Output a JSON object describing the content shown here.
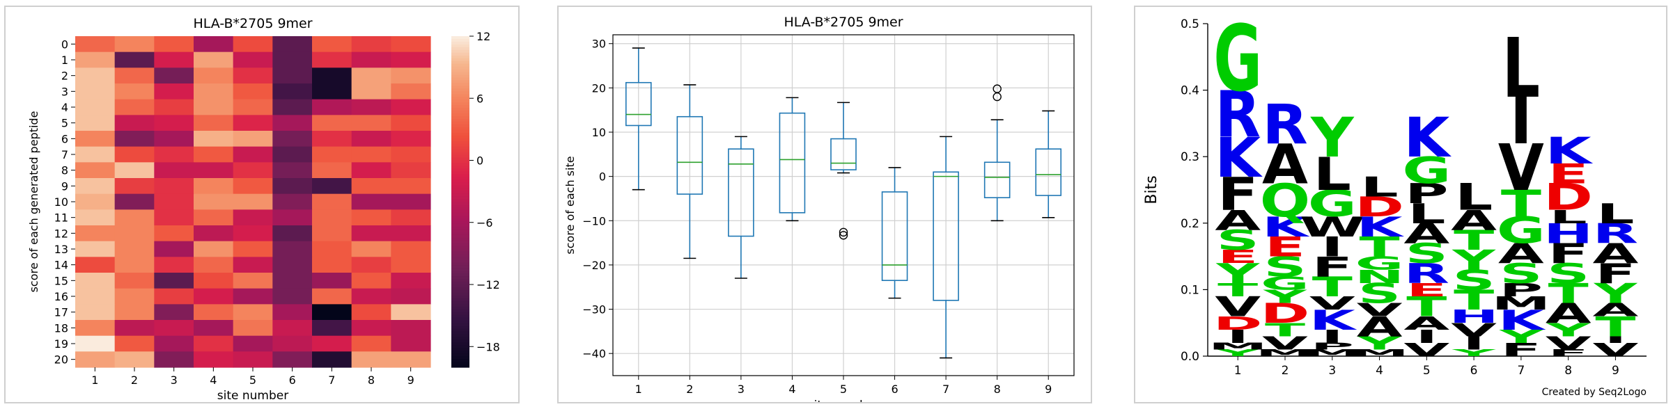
{
  "chart_data": [
    {
      "type": "heatmap",
      "title": "HLA-B*2705 9mer",
      "xlabel": "site number",
      "ylabel": "score of each generated peptide",
      "x_categories": [
        "1",
        "2",
        "3",
        "4",
        "5",
        "6",
        "7",
        "8",
        "9"
      ],
      "y_categories": [
        "0",
        "1",
        "2",
        "3",
        "4",
        "5",
        "6",
        "7",
        "8",
        "9",
        "10",
        "11",
        "12",
        "13",
        "14",
        "15",
        "16",
        "17",
        "18",
        "19",
        "20"
      ],
      "values": [
        [
          4,
          6,
          3,
          -6,
          2,
          -12,
          3,
          1,
          2
        ],
        [
          8,
          -12,
          -2,
          8,
          -3,
          -12,
          0,
          -3,
          -2
        ],
        [
          10,
          4,
          -10,
          6,
          0,
          -12,
          -18,
          8,
          7
        ],
        [
          10,
          6,
          -2,
          7,
          3,
          -14,
          -18,
          8,
          5
        ],
        [
          10,
          4,
          1,
          7,
          4,
          -12,
          -5,
          -4,
          -2
        ],
        [
          10,
          -3,
          -2,
          4,
          -1,
          -6,
          4,
          4,
          2
        ],
        [
          6,
          -9,
          -6,
          9,
          8,
          -10,
          0,
          -3,
          -1
        ],
        [
          10,
          2,
          0,
          3,
          -3,
          -12,
          3,
          3,
          2
        ],
        [
          6,
          10,
          -3,
          -3,
          0,
          -10,
          4,
          -2,
          1
        ],
        [
          10,
          1,
          0,
          6,
          3,
          -12,
          -14,
          3,
          3
        ],
        [
          9,
          -9,
          0,
          7,
          7,
          -9,
          4,
          -6,
          -6
        ],
        [
          10,
          6,
          0,
          4,
          -3,
          -6,
          4,
          3,
          1
        ],
        [
          6,
          6,
          3,
          -4,
          -2,
          -12,
          4,
          -3,
          -3
        ],
        [
          10,
          6,
          -6,
          7,
          3,
          -10,
          3,
          6,
          3
        ],
        [
          2,
          6,
          0,
          4,
          -3,
          -10,
          3,
          1,
          3
        ],
        [
          10,
          4,
          -12,
          2,
          5,
          -10,
          -7,
          3,
          -3
        ],
        [
          10,
          6,
          1,
          -2,
          -6,
          -10,
          4,
          -3,
          -4
        ],
        [
          10,
          6,
          -9,
          4,
          6,
          -6,
          -20,
          2,
          10
        ],
        [
          6,
          -4,
          -3,
          -6,
          5,
          -3,
          -14,
          -3,
          -4
        ],
        [
          12,
          3,
          -6,
          0,
          -6,
          -4,
          -2,
          3,
          -4
        ],
        [
          8,
          9,
          -9,
          -2,
          -3,
          -9,
          -17,
          8,
          8
        ]
      ],
      "colorbar_ticks": [
        12,
        6,
        0,
        -6,
        -12,
        -18
      ],
      "vmin": -20,
      "vmax": 12
    },
    {
      "type": "box",
      "title": "HLA-B*2705 9mer",
      "xlabel": "site number",
      "ylabel": "score of each site",
      "categories": [
        "1",
        "2",
        "3",
        "4",
        "5",
        "6",
        "7",
        "8",
        "9"
      ],
      "ylim": [
        -45,
        32
      ],
      "yticks": [
        30,
        20,
        10,
        0,
        -10,
        -20,
        -30,
        -40
      ],
      "grid": true,
      "boxes": [
        {
          "whislo": -3,
          "q1": 11.5,
          "med": 14,
          "q3": 21.2,
          "whishi": 29,
          "fliers": []
        },
        {
          "whislo": -18.5,
          "q1": -4,
          "med": 3.2,
          "q3": 13.5,
          "whishi": 20.7,
          "fliers": []
        },
        {
          "whislo": -23,
          "q1": -13.5,
          "med": 2.8,
          "q3": 6.2,
          "whishi": 9,
          "fliers": []
        },
        {
          "whislo": -10,
          "q1": -8.2,
          "med": 3.8,
          "q3": 14.3,
          "whishi": 17.8,
          "fliers": []
        },
        {
          "whislo": 0.8,
          "q1": 1.5,
          "med": 3,
          "q3": 8.5,
          "whishi": 16.7,
          "fliers": [
            -12.6,
            -13.3
          ]
        },
        {
          "whislo": -27.5,
          "q1": -23.5,
          "med": -20,
          "q3": -3.5,
          "whishi": 2,
          "fliers": []
        },
        {
          "whislo": -41,
          "q1": -28,
          "med": 0,
          "q3": 1,
          "whishi": 9,
          "fliers": []
        },
        {
          "whislo": -10,
          "q1": -4.8,
          "med": -0.2,
          "q3": 3.2,
          "whishi": 12.8,
          "fliers": [
            18,
            19.8
          ]
        },
        {
          "whislo": -9.3,
          "q1": -4.3,
          "med": 0.4,
          "q3": 6.2,
          "whishi": 14.8,
          "fliers": []
        }
      ],
      "colors": {
        "box": "#1f77b4",
        "median": "#2ca02c"
      }
    },
    {
      "type": "sequence-logo",
      "ylabel": "Bits",
      "ylim": [
        0,
        0.5
      ],
      "yticks": [
        0.0,
        0.1,
        0.2,
        0.3,
        0.4,
        0.5
      ],
      "positions": [
        "1",
        "2",
        "3",
        "4",
        "5",
        "6",
        "7",
        "8",
        "9"
      ],
      "credit": "Created by Seq2Logo",
      "residue_colors": {
        "G": "#00cc00",
        "S": "#00cc00",
        "T": "#00cc00",
        "Y": "#00cc00",
        "C": "#00cc00",
        "Q": "#00cc00",
        "N": "#00cc00",
        "K": "#0000ee",
        "R": "#0000ee",
        "H": "#0000ee",
        "D": "#ee0000",
        "E": "#ee0000",
        "A": "#000000",
        "L": "#000000",
        "I": "#000000",
        "V": "#000000",
        "F": "#000000",
        "P": "#000000",
        "M": "#000000",
        "W": "#000000"
      },
      "stacks": [
        [
          [
            "Y",
            0.01
          ],
          [
            "M",
            0.01
          ],
          [
            "I",
            0.02
          ],
          [
            "D",
            0.02
          ],
          [
            "V",
            0.03
          ],
          [
            "T",
            0.02
          ],
          [
            "Y",
            0.03
          ],
          [
            "E",
            0.02
          ],
          [
            "S",
            0.03
          ],
          [
            "A",
            0.03
          ],
          [
            "F",
            0.05
          ],
          [
            "K",
            0.06
          ],
          [
            "R",
            0.07
          ],
          [
            "G",
            0.1
          ]
        ],
        [
          [
            "M",
            0.01
          ],
          [
            "V",
            0.02
          ],
          [
            "T",
            0.02
          ],
          [
            "D",
            0.03
          ],
          [
            "Y",
            0.02
          ],
          [
            "G",
            0.02
          ],
          [
            "S",
            0.03
          ],
          [
            "E",
            0.03
          ],
          [
            "K",
            0.03
          ],
          [
            "Q",
            0.05
          ],
          [
            "A",
            0.06
          ],
          [
            "R",
            0.06
          ]
        ],
        [
          [
            "M",
            0.01
          ],
          [
            "P",
            0.01
          ],
          [
            "I",
            0.02
          ],
          [
            "K",
            0.03
          ],
          [
            "V",
            0.02
          ],
          [
            "T",
            0.03
          ],
          [
            "F",
            0.03
          ],
          [
            "I",
            0.03
          ],
          [
            "W",
            0.03
          ],
          [
            "G",
            0.04
          ],
          [
            "L",
            0.05
          ],
          [
            "Y",
            0.06
          ]
        ],
        [
          [
            "M",
            0.01
          ],
          [
            "Y",
            0.02
          ],
          [
            "A",
            0.03
          ],
          [
            "V",
            0.02
          ],
          [
            "S",
            0.03
          ],
          [
            "N",
            0.02
          ],
          [
            "G",
            0.02
          ],
          [
            "T",
            0.03
          ],
          [
            "K",
            0.03
          ],
          [
            "D",
            0.03
          ],
          [
            "L",
            0.03
          ]
        ],
        [
          [
            "V",
            0.02
          ],
          [
            "I",
            0.02
          ],
          [
            "A",
            0.02
          ],
          [
            "T",
            0.03
          ],
          [
            "E",
            0.02
          ],
          [
            "R",
            0.03
          ],
          [
            "S",
            0.03
          ],
          [
            "A",
            0.03
          ],
          [
            "L",
            0.03
          ],
          [
            "P",
            0.03
          ],
          [
            "G",
            0.04
          ],
          [
            "K",
            0.06
          ]
        ],
        [
          [
            "Y",
            0.01
          ],
          [
            "I",
            0.02
          ],
          [
            "V",
            0.02
          ],
          [
            "H",
            0.02
          ],
          [
            "T",
            0.03
          ],
          [
            "S",
            0.03
          ],
          [
            "Y",
            0.03
          ],
          [
            "T",
            0.03
          ],
          [
            "A",
            0.03
          ],
          [
            "L",
            0.04
          ]
        ],
        [
          [
            "F",
            0.02
          ],
          [
            "Y",
            0.02
          ],
          [
            "K",
            0.03
          ],
          [
            "M",
            0.02
          ],
          [
            "P",
            0.02
          ],
          [
            "S",
            0.03
          ],
          [
            "A",
            0.03
          ],
          [
            "G",
            0.04
          ],
          [
            "T",
            0.04
          ],
          [
            "V",
            0.07
          ],
          [
            "I",
            0.07
          ],
          [
            "L",
            0.09
          ]
        ],
        [
          [
            "F",
            0.01
          ],
          [
            "V",
            0.02
          ],
          [
            "Y",
            0.02
          ],
          [
            "A",
            0.03
          ],
          [
            "T",
            0.03
          ],
          [
            "S",
            0.03
          ],
          [
            "F",
            0.03
          ],
          [
            "H",
            0.03
          ],
          [
            "L",
            0.02
          ],
          [
            "D",
            0.04
          ],
          [
            "E",
            0.03
          ],
          [
            "K",
            0.04
          ]
        ],
        [
          [
            "V",
            0.02
          ],
          [
            "I",
            0.01
          ],
          [
            "T",
            0.03
          ],
          [
            "A",
            0.02
          ],
          [
            "Y",
            0.03
          ],
          [
            "F",
            0.03
          ],
          [
            "A",
            0.03
          ],
          [
            "R",
            0.03
          ],
          [
            "L",
            0.03
          ]
        ]
      ]
    }
  ]
}
